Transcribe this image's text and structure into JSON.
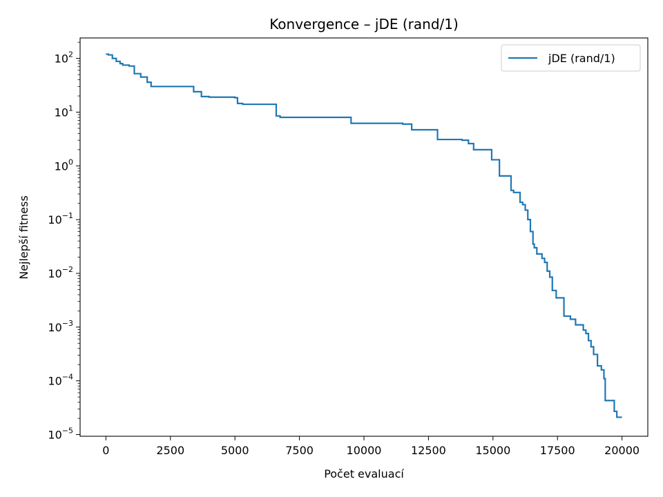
{
  "chart_data": {
    "type": "line",
    "title": "Konvergence – jDE (rand/1)",
    "xlabel": "Počet evaluací",
    "ylabel": "Nejlepší fitness",
    "xlim": [
      -1000,
      21000
    ],
    "ylim": [
      9.3e-06,
      240
    ],
    "yscale": "log",
    "x_ticks": [
      0,
      2500,
      5000,
      7500,
      10000,
      12500,
      15000,
      17500,
      20000
    ],
    "y_ticks": [
      {
        "value": 100,
        "base": "10",
        "exp": "2"
      },
      {
        "value": 10,
        "base": "10",
        "exp": "1"
      },
      {
        "value": 1,
        "base": "10",
        "exp": "0"
      },
      {
        "value": 0.1,
        "base": "10",
        "exp": "−1"
      },
      {
        "value": 0.01,
        "base": "10",
        "exp": "−2"
      },
      {
        "value": 0.001,
        "base": "10",
        "exp": "−3"
      },
      {
        "value": 0.0001,
        "base": "10",
        "exp": "−4"
      },
      {
        "value": 1e-05,
        "base": "10",
        "exp": "−5"
      }
    ],
    "grid": false,
    "legend_position": "top-right",
    "series": [
      {
        "name": "jDE (rand/1)",
        "color": "#1f77b4",
        "step": "post",
        "x": [
          0,
          100,
          250,
          400,
          550,
          650,
          900,
          1100,
          1350,
          1600,
          1750,
          3300,
          3400,
          3700,
          4000,
          5000,
          5100,
          5300,
          6250,
          6600,
          6750,
          9400,
          9500,
          11300,
          11500,
          11850,
          12300,
          12850,
          13000,
          13800,
          14050,
          14250,
          14700,
          14950,
          15250,
          15700,
          15800,
          15950,
          16050,
          16150,
          16250,
          16350,
          16450,
          16550,
          16600,
          16700,
          16900,
          17000,
          17100,
          17200,
          17300,
          17450,
          17750,
          18000,
          18200,
          18500,
          18600,
          18700,
          18800,
          18900,
          19050,
          19200,
          19300,
          19350,
          19700,
          19800,
          20000
        ],
        "y": [
          120,
          116,
          100,
          88,
          80,
          75,
          72,
          52,
          45,
          36,
          30,
          30,
          24,
          19.5,
          19,
          18.5,
          14.5,
          14,
          14,
          8.5,
          8,
          8,
          6.2,
          6.2,
          6,
          4.7,
          4.7,
          3.1,
          3.1,
          3,
          2.6,
          2,
          2,
          1.3,
          0.65,
          0.35,
          0.32,
          0.32,
          0.21,
          0.19,
          0.15,
          0.1,
          0.06,
          0.035,
          0.03,
          0.023,
          0.019,
          0.016,
          0.011,
          0.0085,
          0.0048,
          0.0035,
          0.0016,
          0.0014,
          0.0011,
          0.00088,
          0.00076,
          0.00056,
          0.00043,
          0.00031,
          0.00019,
          0.00016,
          0.00011,
          4.3e-05,
          2.7e-05,
          2.1e-05,
          2.1e-05
        ]
      }
    ]
  }
}
